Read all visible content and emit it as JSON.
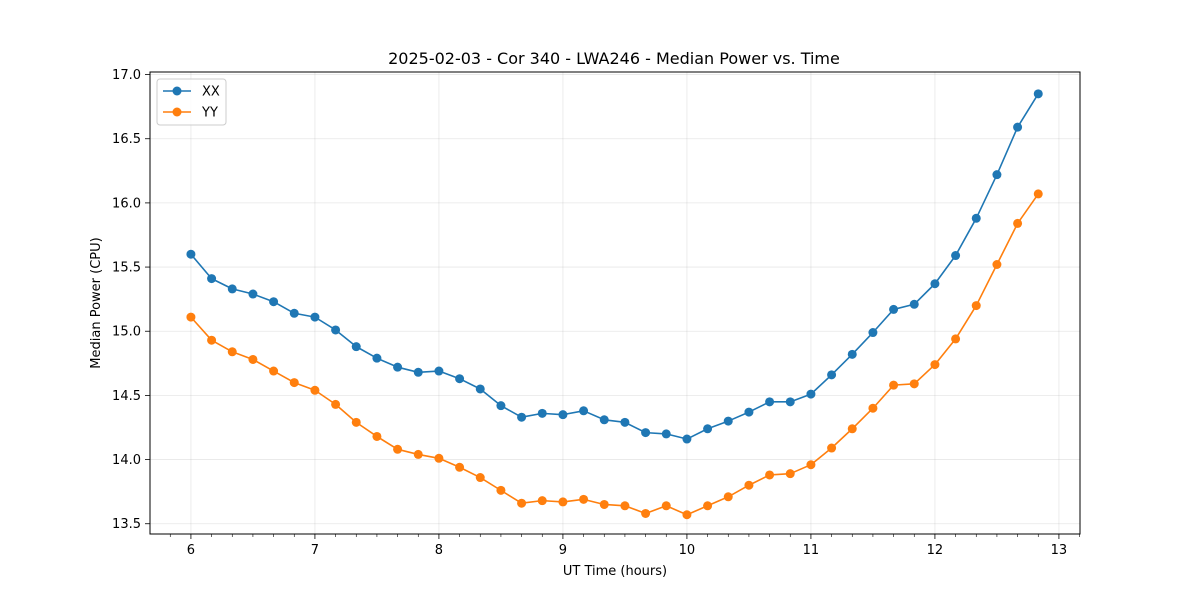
{
  "chart_data": {
    "type": "line",
    "title": "2025-02-03 - Cor 340 - LWA246 - Median Power vs. Time",
    "xlabel": "UT Time (hours)",
    "ylabel": "Median Power (CPU)",
    "xlim": [
      5.67,
      13.17
    ],
    "ylim": [
      13.42,
      17.02
    ],
    "xticks": [
      6,
      7,
      8,
      9,
      10,
      11,
      12,
      13
    ],
    "xtick_labels": [
      "6",
      "7",
      "8",
      "9",
      "10",
      "11",
      "12",
      "13"
    ],
    "yticks": [
      13.5,
      14.0,
      14.5,
      15.0,
      15.5,
      16.0,
      16.5,
      17.0
    ],
    "ytick_labels": [
      "13.5",
      "14.0",
      "14.5",
      "15.0",
      "15.5",
      "16.0",
      "16.5",
      "17.0"
    ],
    "grid": true,
    "legend_position": "top-left",
    "x": [
      6.0,
      6.1667,
      6.3333,
      6.5,
      6.6667,
      6.8333,
      7.0,
      7.1667,
      7.3333,
      7.5,
      7.6667,
      7.8333,
      8.0,
      8.1667,
      8.3333,
      8.5,
      8.6667,
      8.8333,
      9.0,
      9.1667,
      9.3333,
      9.5,
      9.6667,
      9.8333,
      10.0,
      10.1667,
      10.3333,
      10.5,
      10.6667,
      10.8333,
      11.0,
      11.1667,
      11.3333,
      11.5,
      11.6667,
      11.8333,
      12.0,
      12.1667,
      12.3333,
      12.5,
      12.6667,
      12.8333
    ],
    "series": [
      {
        "name": "XX",
        "color": "#1f77b4",
        "values": [
          15.6,
          15.41,
          15.33,
          15.29,
          15.23,
          15.14,
          15.11,
          15.01,
          14.88,
          14.79,
          14.72,
          14.68,
          14.69,
          14.63,
          14.55,
          14.42,
          14.33,
          14.36,
          14.35,
          14.38,
          14.31,
          14.29,
          14.21,
          14.2,
          14.16,
          14.24,
          14.3,
          14.37,
          14.45,
          14.45,
          14.51,
          14.66,
          14.82,
          14.99,
          15.17,
          15.21,
          15.37,
          15.59,
          15.88,
          16.22,
          16.59,
          16.85
        ]
      },
      {
        "name": "YY",
        "color": "#ff7f0e",
        "values": [
          15.11,
          14.93,
          14.84,
          14.78,
          14.69,
          14.6,
          14.54,
          14.43,
          14.29,
          14.18,
          14.08,
          14.04,
          14.01,
          13.94,
          13.86,
          13.76,
          13.66,
          13.68,
          13.67,
          13.69,
          13.65,
          13.64,
          13.58,
          13.64,
          13.57,
          13.64,
          13.71,
          13.8,
          13.88,
          13.89,
          13.96,
          14.09,
          14.24,
          14.4,
          14.58,
          14.59,
          14.74,
          14.94,
          15.2,
          15.52,
          15.84,
          16.07
        ]
      }
    ]
  }
}
